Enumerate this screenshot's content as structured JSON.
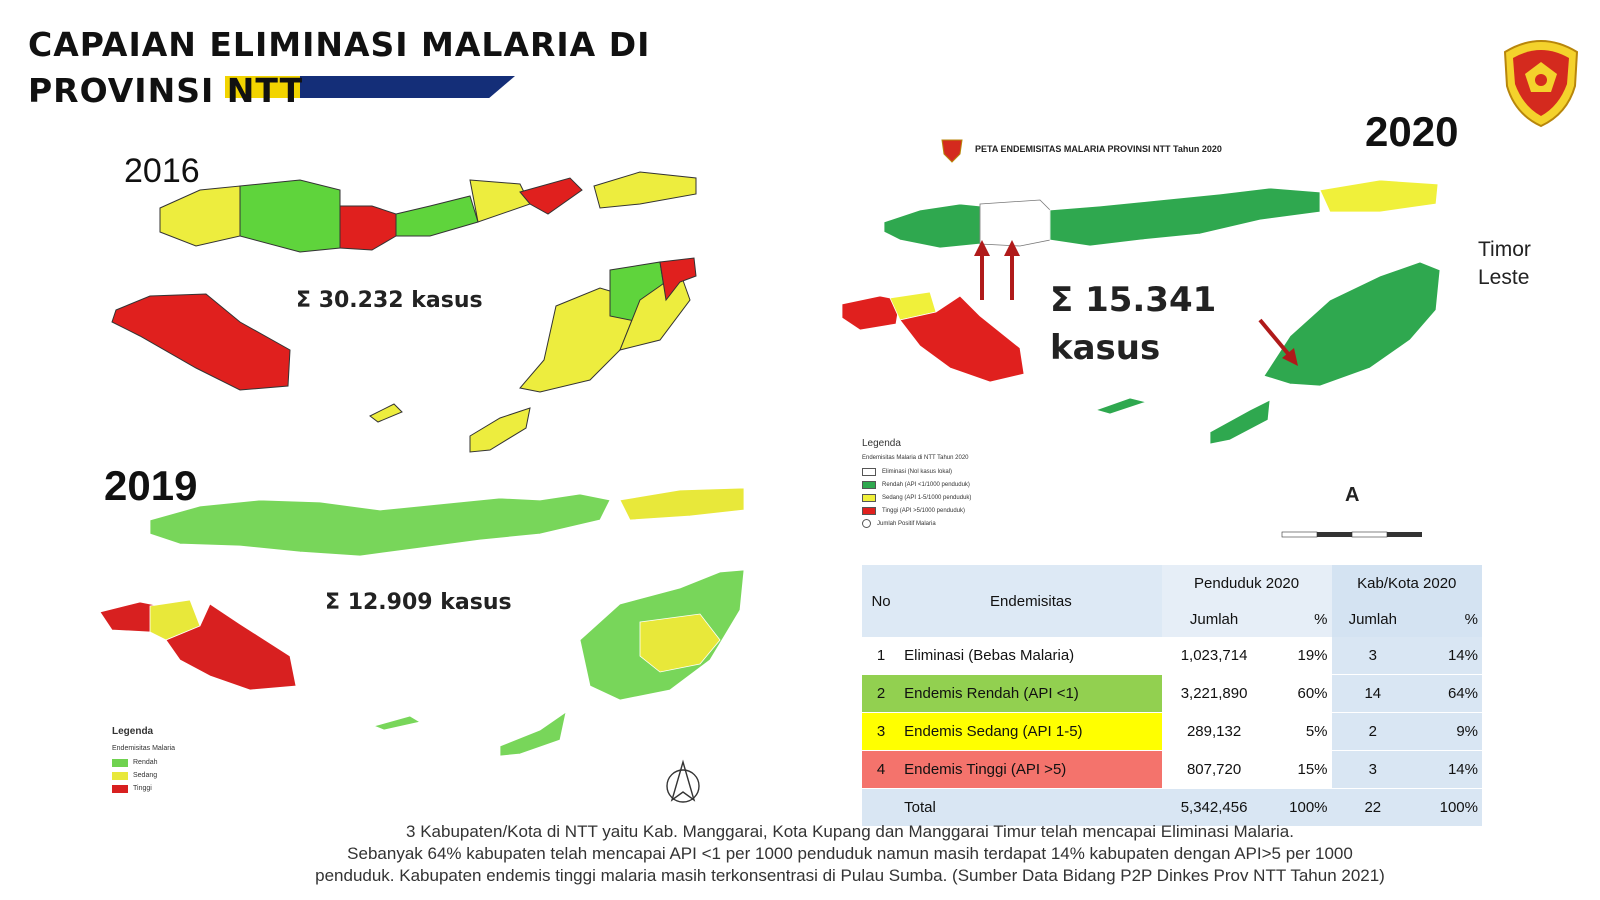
{
  "title": {
    "line1": "CAPAIAN ELIMINASI MALARIA DI",
    "line2": "PROVINSI NTT"
  },
  "maps": {
    "map_2016": {
      "year": "2016",
      "sum": "Σ 30.232 kasus"
    },
    "map_2019": {
      "year": "2019",
      "sum": "Σ 12.909 kasus"
    },
    "map_2020": {
      "year": "2020",
      "heading": "PETA ENDEMISITAS MALARIA PROVINSI NTT Tahun 2020",
      "sum": "Σ 15.341 kasus",
      "timor_label": "Timor Leste"
    }
  },
  "legend_2020": {
    "title": "Legenda",
    "subtitle": "Endemisitas Malaria di NTT Tahun 2020",
    "items": [
      {
        "label": "Eliminasi (Nol kasus lokal)",
        "color": "#ffffff"
      },
      {
        "label": "Rendah (API <1/1000 penduduk)",
        "color": "#2fa84f"
      },
      {
        "label": "Sedang (API 1-5/1000 penduduk)",
        "color": "#f0f03a"
      },
      {
        "label": "Tinggi (API >5/1000 penduduk)",
        "color": "#e0201e"
      },
      {
        "label": "Jumlah Positif Malaria",
        "color": "#ffffff"
      }
    ]
  },
  "legend_2019": {
    "title": "Legenda",
    "subtitle": "Endemisitas Malaria",
    "items": [
      {
        "label": "Rendah",
        "color": "#6fd24f"
      },
      {
        "label": "Sedang",
        "color": "#e8e83a"
      },
      {
        "label": "Tinggi",
        "color": "#d82020"
      }
    ]
  },
  "north_label": "A",
  "colors": {
    "red": "#e0201e",
    "yellow": "#eded3e",
    "green_2016": "#5fd43c",
    "green_2019": "#78d65a",
    "green_2020": "#2fa84f",
    "title_bar": "#142e78"
  },
  "table": {
    "headers": {
      "no": "No",
      "endemisitas": "Endemisitas",
      "penduduk": "Penduduk 2020",
      "kab": "Kab/Kota 2020",
      "jumlah": "Jumlah",
      "pct": "%"
    },
    "rows": [
      {
        "no": "1",
        "label": "Eliminasi (Bebas Malaria)",
        "pend_jumlah": "1,023,714",
        "pend_pct": "19%",
        "kab_jumlah": "3",
        "kab_pct": "14%"
      },
      {
        "no": "2",
        "label": "Endemis Rendah (API <1)",
        "pend_jumlah": "3,221,890",
        "pend_pct": "60%",
        "kab_jumlah": "14",
        "kab_pct": "64%"
      },
      {
        "no": "3",
        "label": "Endemis Sedang (API 1-5)",
        "pend_jumlah": "289,132",
        "pend_pct": "5%",
        "kab_jumlah": "2",
        "kab_pct": "9%"
      },
      {
        "no": "4",
        "label": "Endemis Tinggi (API >5)",
        "pend_jumlah": "807,720",
        "pend_pct": "15%",
        "kab_jumlah": "3",
        "kab_pct": "14%"
      }
    ],
    "total": {
      "label": "Total",
      "pend_jumlah": "5,342,456",
      "pend_pct": "100%",
      "kab_jumlah": "22",
      "kab_pct": "100%"
    }
  },
  "footnote": {
    "line1": "3 Kabupaten/Kota di NTT yaitu Kab. Manggarai, Kota Kupang dan Manggarai Timur telah mencapai Eliminasi Malaria.",
    "line2": "Sebanyak 64% kabupaten telah mencapai API <1 per 1000 penduduk namun masih terdapat 14% kabupaten dengan API>5 per 1000",
    "line3": "penduduk. Kabupaten endemis tinggi malaria masih terkonsentrasi di Pulau Sumba. (Sumber Data Bidang P2P Dinkes Prov NTT Tahun 2021)"
  }
}
